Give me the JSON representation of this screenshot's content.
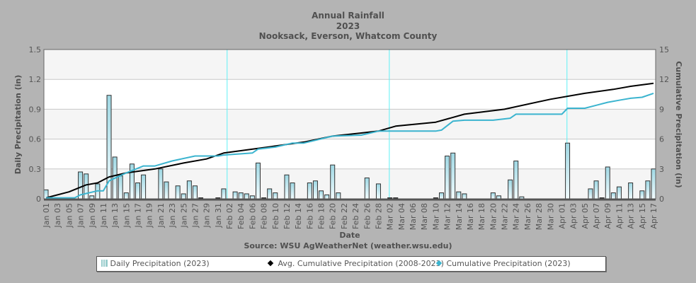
{
  "chart_data": {
    "type": "bar+line",
    "title": "Annual Rainfall",
    "subtitle1": "2023",
    "subtitle2": "Nooksack, Everson, Whatcom County",
    "xlabel": "Date",
    "ylabel": "Daily Precipitation (in)",
    "y2label": "Cumulative Precipitation (in)",
    "source": "Source:  WSU AgWeatherNet (weather.wsu.edu)",
    "ylim": [
      0,
      1.5
    ],
    "y2lim": [
      0,
      15
    ],
    "yticks": [
      "0",
      "0.3",
      "0.6",
      "0.9",
      "1.2",
      "1.5"
    ],
    "y2ticks": [
      "0",
      "3",
      "6",
      "9",
      "12",
      "15"
    ],
    "grid": true,
    "legend_position": "bottom",
    "x_start": "Jan 01",
    "x_end": "Apr 17",
    "xticks": [
      "Jan 01",
      "Jan 03",
      "Jan 05",
      "Jan 07",
      "Jan 09",
      "Jan 11",
      "Jan 13",
      "Jan 15",
      "Jan 17",
      "Jan 19",
      "Jan 21",
      "Jan 23",
      "Jan 25",
      "Jan 27",
      "Jan 29",
      "Jan 31",
      "Feb 02",
      "Feb 04",
      "Feb 06",
      "Feb 08",
      "Feb 10",
      "Feb 12",
      "Feb 14",
      "Feb 16",
      "Feb 18",
      "Feb 20",
      "Feb 22",
      "Feb 24",
      "Feb 26",
      "Feb 28",
      "Mar 02",
      "Mar 04",
      "Mar 06",
      "Mar 08",
      "Mar 10",
      "Mar 12",
      "Mar 14",
      "Mar 16",
      "Mar 18",
      "Mar 20",
      "Mar 22",
      "Mar 24",
      "Mar 26",
      "Mar 28",
      "Mar 30",
      "Apr 01",
      "Apr 03",
      "Apr 05",
      "Apr 07",
      "Apr 09",
      "Apr 11",
      "Apr 13",
      "Apr 15",
      "Apr 17"
    ],
    "series": [
      {
        "name": "Daily Precipitation (2023)",
        "type": "bar",
        "axis": "left",
        "color": "#a8dce6",
        "values": [
          0.09,
          0,
          0,
          0,
          0,
          0,
          0.27,
          0.25,
          0.03,
          0.15,
          0,
          1.04,
          0.42,
          0.23,
          0.06,
          0.35,
          0.16,
          0.24,
          0,
          0,
          0.3,
          0.17,
          0,
          0.13,
          0.05,
          0.18,
          0.13,
          0.01,
          0,
          0,
          0.01,
          0.1,
          0,
          0.07,
          0.06,
          0.05,
          0.03,
          0.36,
          0.01,
          0.1,
          0.06,
          0,
          0.24,
          0.16,
          0,
          0,
          0.16,
          0.18,
          0.08,
          0.04,
          0.34,
          0.06,
          0,
          0,
          0,
          0,
          0.21,
          0,
          0.15,
          0,
          0.01,
          0.01,
          0,
          0,
          0,
          0,
          0,
          0,
          0.01,
          0.06,
          0.43,
          0.46,
          0.07,
          0.05,
          0,
          0,
          0,
          0,
          0.06,
          0.03,
          0,
          0.19,
          0.38,
          0.02,
          0,
          0,
          0,
          0,
          0,
          0,
          0,
          0.56,
          0,
          0,
          0,
          0.1,
          0.18,
          0.01,
          0.32,
          0.06,
          0.12,
          0,
          0.16,
          0,
          0.08,
          0.18,
          0.3
        ]
      },
      {
        "name": "Avg. Cumulative Precipitation (2008-2023)",
        "type": "line",
        "axis": "right",
        "color": "#000000",
        "points": [
          [
            "Jan 01",
            0.1
          ],
          [
            "Jan 05",
            0.7
          ],
          [
            "Jan 08",
            1.4
          ],
          [
            "Jan 10",
            1.6
          ],
          [
            "Jan 12",
            2.2
          ],
          [
            "Jan 15",
            2.6
          ],
          [
            "Jan 20",
            3.0
          ],
          [
            "Jan 25",
            3.6
          ],
          [
            "Jan 29",
            4.0
          ],
          [
            "Feb 01",
            4.6
          ],
          [
            "Feb 10",
            5.3
          ],
          [
            "Feb 15",
            5.7
          ],
          [
            "Feb 20",
            6.3
          ],
          [
            "Feb 28",
            6.8
          ],
          [
            "Mar 03",
            7.3
          ],
          [
            "Mar 10",
            7.7
          ],
          [
            "Mar 15",
            8.5
          ],
          [
            "Mar 22",
            9.0
          ],
          [
            "Mar 30",
            10.0
          ],
          [
            "Apr 05",
            10.6
          ],
          [
            "Apr 10",
            11.0
          ],
          [
            "Apr 13",
            11.3
          ],
          [
            "Apr 17",
            11.6
          ]
        ]
      },
      {
        "name": "Cumulative Precipitation (2023)",
        "type": "line",
        "axis": "right",
        "color": "#3bb4cf",
        "points": [
          [
            "Jan 01",
            0.1
          ],
          [
            "Jan 06",
            0.1
          ],
          [
            "Jan 07",
            0.4
          ],
          [
            "Jan 10",
            0.8
          ],
          [
            "Jan 11",
            0.8
          ],
          [
            "Jan 12",
            1.8
          ],
          [
            "Jan 15",
            2.6
          ],
          [
            "Jan 18",
            3.3
          ],
          [
            "Jan 20",
            3.3
          ],
          [
            "Jan 23",
            3.8
          ],
          [
            "Jan 27",
            4.3
          ],
          [
            "Jan 31",
            4.3
          ],
          [
            "Feb 01",
            4.4
          ],
          [
            "Feb 06",
            4.6
          ],
          [
            "Feb 07",
            5.0
          ],
          [
            "Feb 10",
            5.2
          ],
          [
            "Feb 13",
            5.6
          ],
          [
            "Feb 15",
            5.6
          ],
          [
            "Feb 20",
            6.3
          ],
          [
            "Feb 25",
            6.4
          ],
          [
            "Feb 28",
            6.8
          ],
          [
            "Mar 10",
            6.8
          ],
          [
            "Mar 11",
            6.9
          ],
          [
            "Mar 13",
            7.8
          ],
          [
            "Mar 15",
            7.9
          ],
          [
            "Mar 20",
            7.9
          ],
          [
            "Mar 23",
            8.1
          ],
          [
            "Mar 24",
            8.5
          ],
          [
            "Apr 01",
            8.5
          ],
          [
            "Apr 02",
            9.1
          ],
          [
            "Apr 05",
            9.1
          ],
          [
            "Apr 07",
            9.4
          ],
          [
            "Apr 09",
            9.7
          ],
          [
            "Apr 11",
            9.9
          ],
          [
            "Apr 13",
            10.1
          ],
          [
            "Apr 15",
            10.2
          ],
          [
            "Apr 17",
            10.6
          ]
        ]
      }
    ]
  },
  "legend": {
    "daily": "Daily Precipitation (2023)",
    "avg": "Avg. Cumulative Precipitation (2008-2023)",
    "cum": "Cumulative Precipitation (2023)"
  }
}
